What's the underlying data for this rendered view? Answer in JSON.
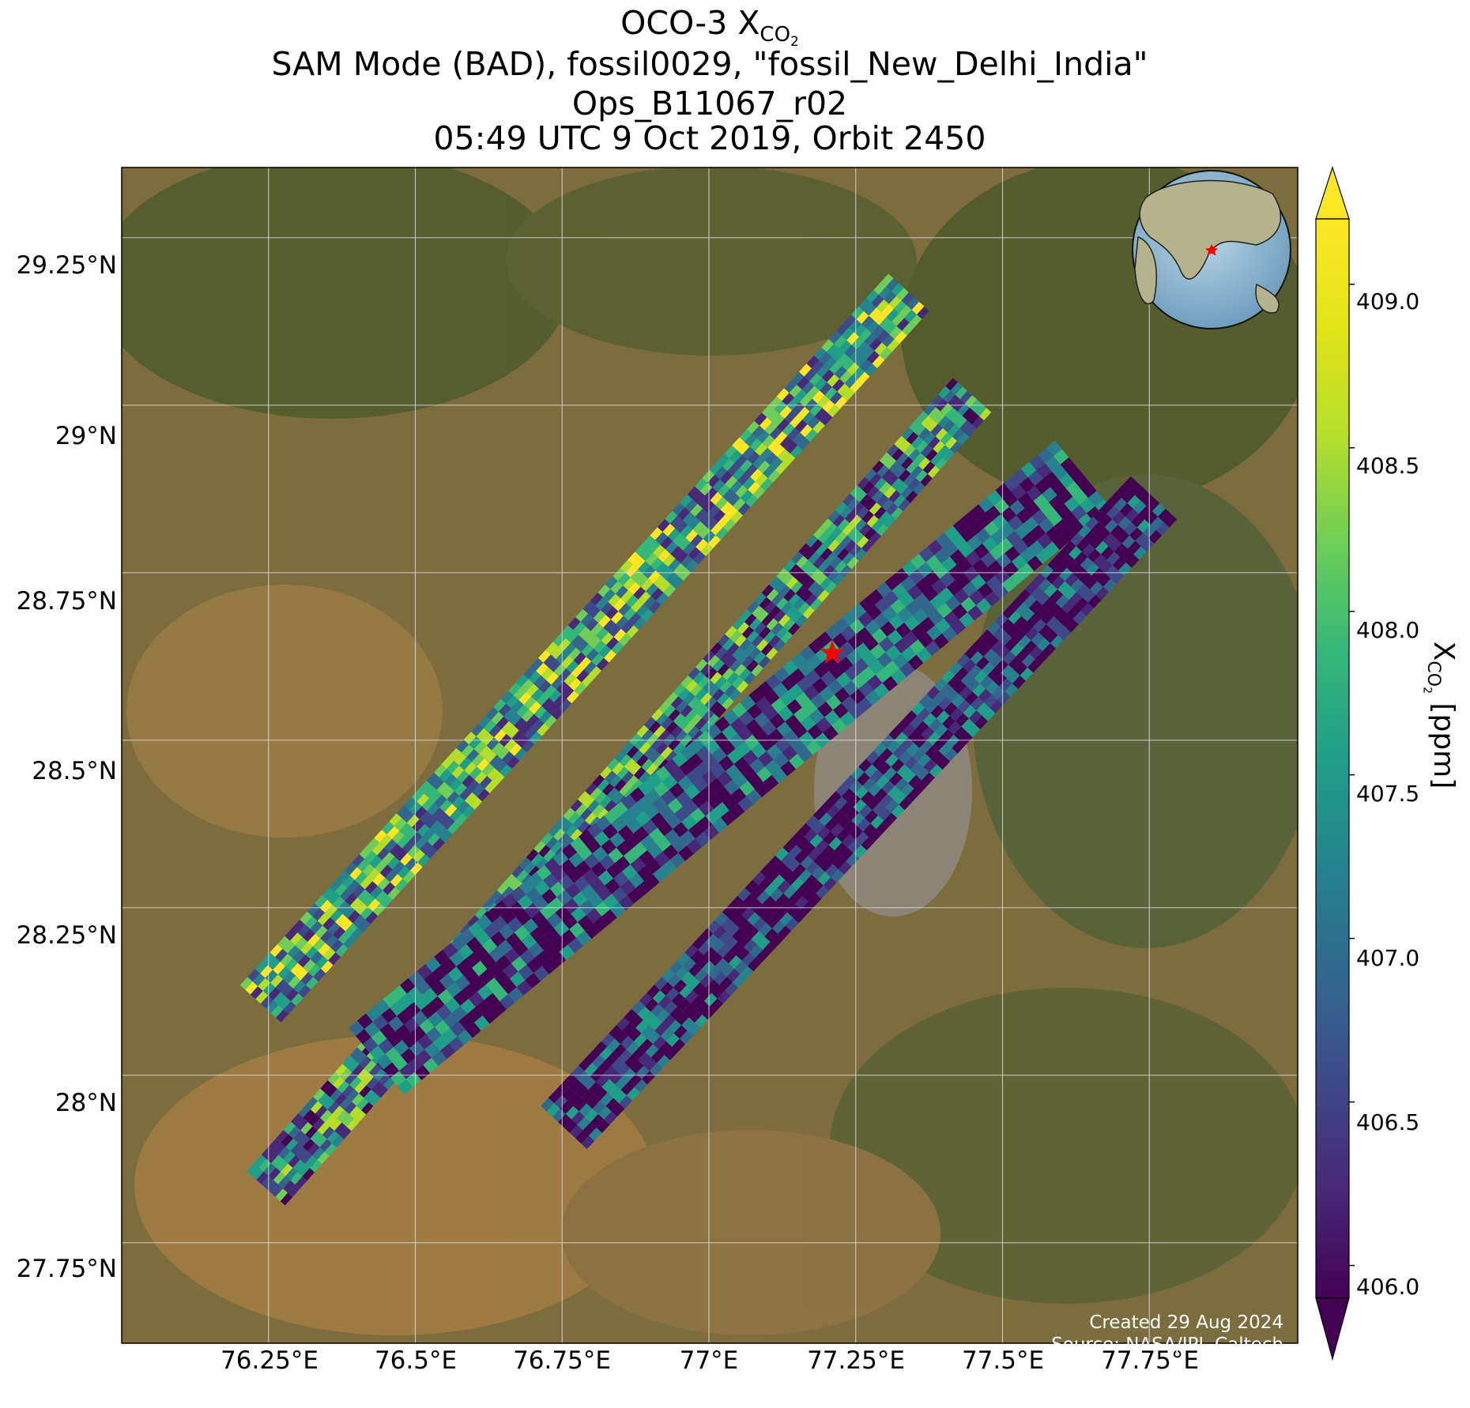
{
  "title": {
    "line1_main": "OCO-3 X",
    "line1_sub": "CO",
    "line1_subsub": "2",
    "line2": "SAM Mode (BAD), fossil0029, \"fossil_New_Delhi_India\"",
    "line3": "Ops_B11067_r02",
    "line4": "05:49 UTC 9 Oct 2019, Orbit 2450"
  },
  "map": {
    "lat_ticks": [
      "29.25°N",
      "29°N",
      "28.75°N",
      "28.5°N",
      "28.25°N",
      "28°N",
      "27.75°N"
    ],
    "lon_ticks": [
      "76.25°E",
      "76.5°E",
      "76.75°E",
      "77°E",
      "77.25°E",
      "77.5°E",
      "77.75°E"
    ],
    "lat_values": [
      29.25,
      29.0,
      28.75,
      28.5,
      28.25,
      28.0,
      27.75
    ],
    "lon_values": [
      76.25,
      76.5,
      76.75,
      77.0,
      77.25,
      77.5,
      77.75
    ],
    "target_marker": {
      "name": "fossil_New_Delhi_India",
      "lon": 77.21,
      "lat": 28.63,
      "color": "#ff0000"
    },
    "basemap": "satellite imagery",
    "gridlines": true,
    "inset_globe": "orthographic globe centered on Asia with red star at target",
    "credit_line1": "Created 29 Aug 2024",
    "credit_line2": "Source: NASA/JPL-Caltech"
  },
  "colorbar": {
    "colormap": "viridis",
    "extend": "both",
    "ticks": [
      "406.0",
      "406.5",
      "407.0",
      "407.5",
      "408.0",
      "408.5",
      "409.0"
    ],
    "tick_values": [
      406.0,
      406.5,
      407.0,
      407.5,
      408.0,
      408.5,
      409.0
    ],
    "range": [
      405.9,
      409.2
    ],
    "label_main": "X",
    "label_sub": "CO",
    "label_subsub": "2",
    "label_unit": " [ppm]"
  },
  "colors": {
    "viridis_low": "#440154",
    "viridis_mid": "#21918c",
    "viridis_high": "#fde725",
    "target_star": "#ff0000"
  }
}
